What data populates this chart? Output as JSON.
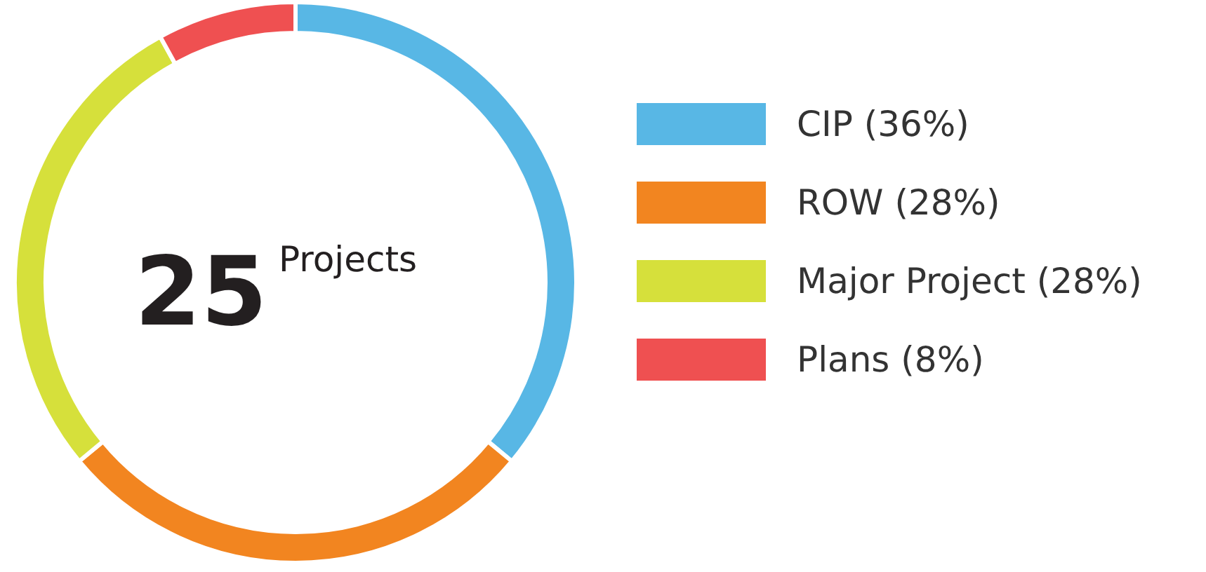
{
  "chart_data": {
    "type": "donut",
    "categories": [
      "CIP (36%)",
      "ROW (28%)",
      "Major Project (28%)",
      "Plans (8%)"
    ],
    "values": [
      36,
      28,
      28,
      8
    ],
    "colors": [
      "#58b7e5",
      "#f28520",
      "#d6e03b",
      "#ef5051"
    ],
    "legend": "right",
    "annotations": [
      "25",
      "Projects"
    ]
  }
}
